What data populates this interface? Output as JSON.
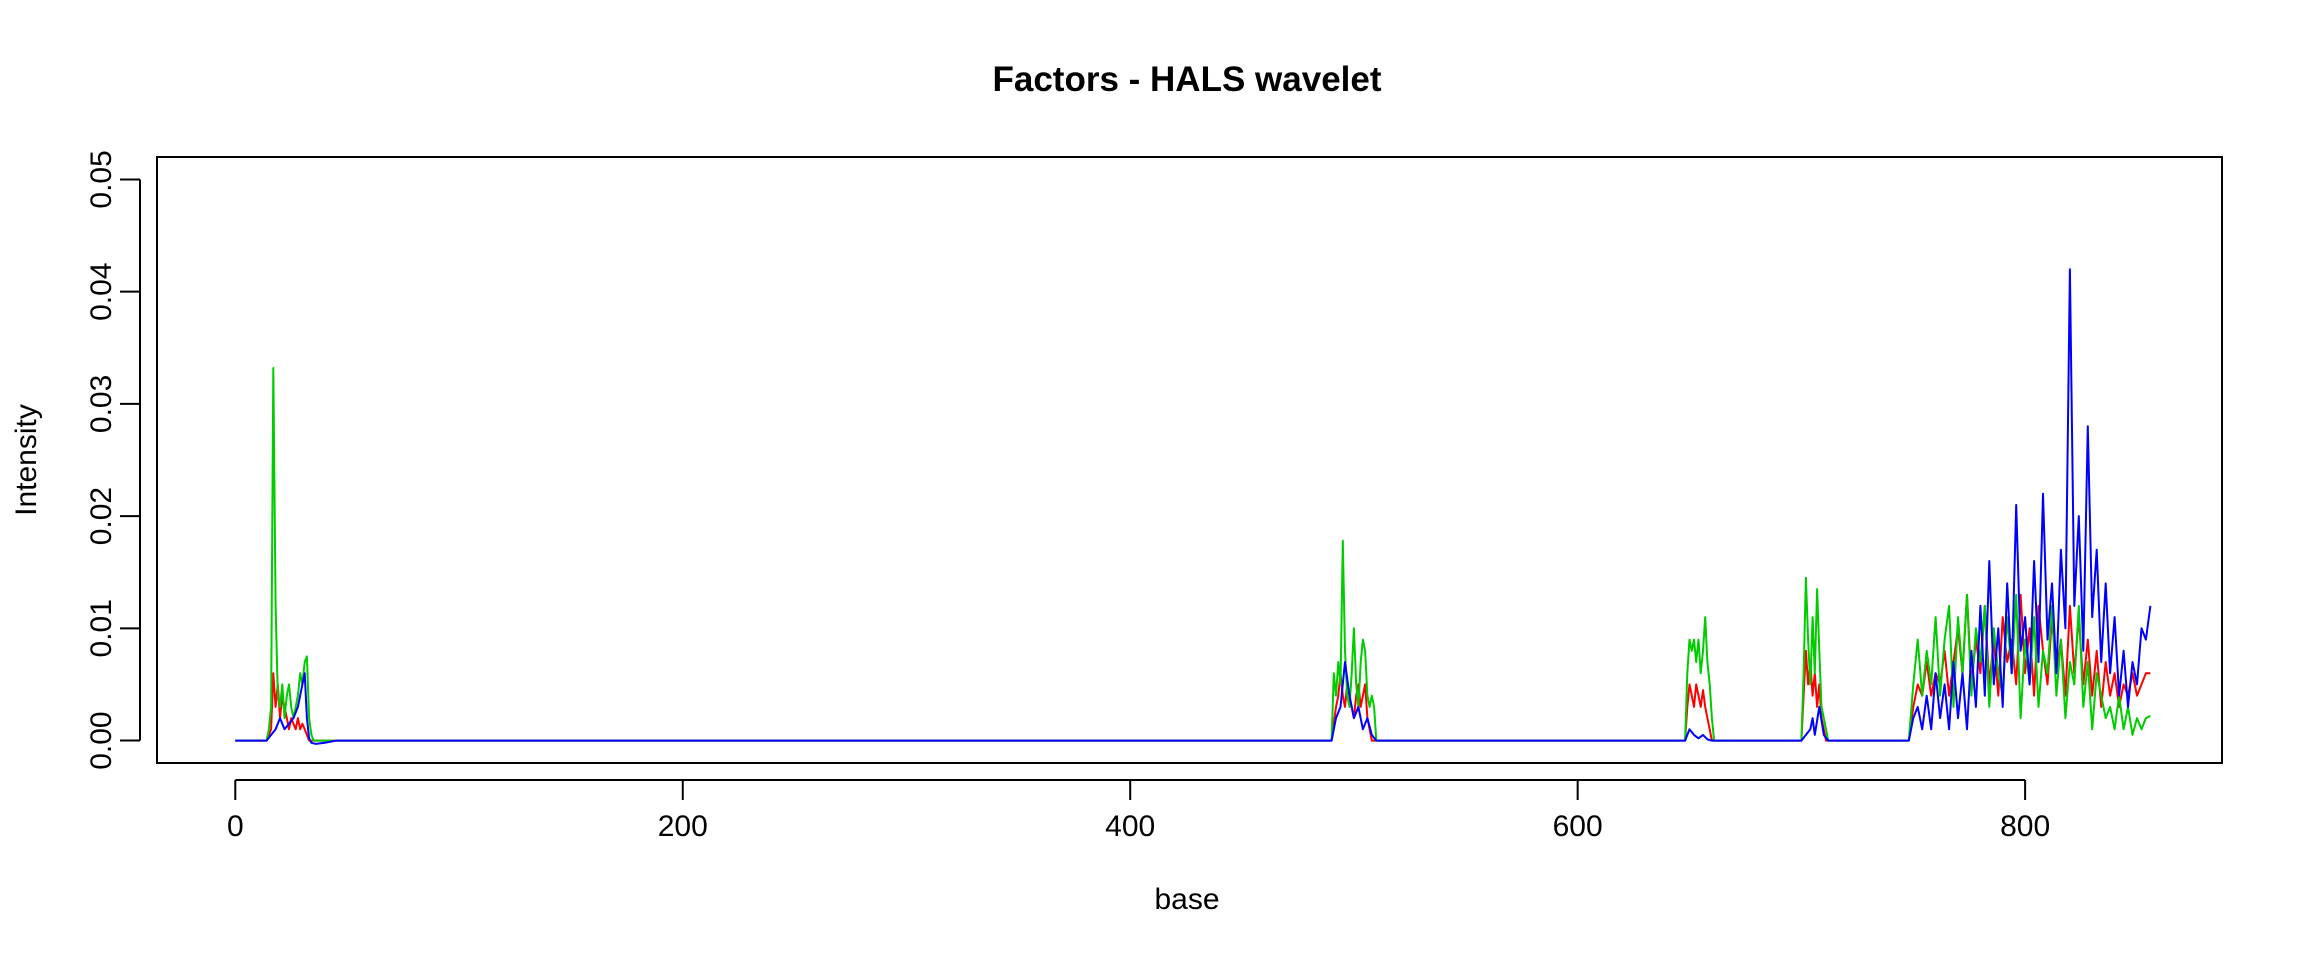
{
  "chart_data": {
    "type": "line",
    "title": "Factors - HALS wavelet",
    "xlabel": "base",
    "ylabel": "Intensity",
    "xlim": [
      -35,
      888
    ],
    "ylim": [
      -0.002,
      0.052
    ],
    "xticks": [
      0,
      200,
      400,
      600,
      800
    ],
    "xtick_labels": [
      "0",
      "200",
      "400",
      "600",
      "800"
    ],
    "yticks": [
      0.0,
      0.01,
      0.02,
      0.03,
      0.04,
      0.05
    ],
    "ytick_labels": [
      "0.00",
      "0.01",
      "0.02",
      "0.03",
      "0.04",
      "0.05"
    ],
    "grid": false,
    "legend": "none",
    "series": [
      {
        "color": "#ff0000",
        "x": [
          0,
          14,
          16,
          17,
          18,
          19,
          20,
          21,
          22,
          23,
          24,
          25,
          26,
          27,
          28,
          29,
          30,
          31,
          32,
          33,
          34,
          36,
          40,
          45,
          490,
          492,
          493,
          494,
          495,
          496,
          497,
          498,
          499,
          500,
          501,
          502,
          503,
          504,
          505,
          506,
          508,
          510,
          648,
          649,
          650,
          651,
          652,
          653,
          654,
          655,
          656,
          657,
          658,
          659,
          660,
          700,
          701,
          702,
          703,
          704,
          705,
          706,
          707,
          708,
          709,
          710,
          711,
          712,
          748,
          750,
          752,
          754,
          756,
          758,
          760,
          762,
          764,
          766,
          768,
          770,
          772,
          774,
          776,
          778,
          780,
          782,
          784,
          786,
          788,
          790,
          792,
          794,
          796,
          798,
          800,
          802,
          804,
          806,
          808,
          810,
          812,
          814,
          816,
          818,
          820,
          822,
          824,
          826,
          828,
          830,
          832,
          834,
          836,
          838,
          840,
          842,
          844,
          846,
          848,
          850,
          852,
          854,
          856
        ],
        "y": [
          0.0,
          0.0,
          0.001,
          0.006,
          0.003,
          0.005,
          0.002,
          0.004,
          0.003,
          0.002,
          0.001,
          0.002,
          0.0015,
          0.001,
          0.002,
          0.001,
          0.0015,
          0.001,
          0.0005,
          0.0,
          0.0,
          0.0,
          0.0,
          0.0,
          0.0,
          0.003,
          0.004,
          0.006,
          0.004,
          0.003,
          0.005,
          0.004,
          0.003,
          0.002,
          0.004,
          0.005,
          0.003,
          0.004,
          0.005,
          0.002,
          0.0,
          0.0,
          0.0,
          0.003,
          0.005,
          0.004,
          0.003,
          0.005,
          0.004,
          0.003,
          0.0045,
          0.003,
          0.002,
          0.001,
          0.0,
          0.0,
          0.004,
          0.008,
          0.005,
          0.007,
          0.004,
          0.006,
          0.003,
          0.005,
          0.002,
          0.001,
          0.0,
          0.0,
          0.0,
          0.003,
          0.005,
          0.004,
          0.007,
          0.004,
          0.006,
          0.005,
          0.008,
          0.004,
          0.007,
          0.01,
          0.006,
          0.013,
          0.005,
          0.009,
          0.006,
          0.012,
          0.005,
          0.009,
          0.004,
          0.011,
          0.007,
          0.009,
          0.005,
          0.013,
          0.006,
          0.01,
          0.004,
          0.012,
          0.008,
          0.005,
          0.011,
          0.006,
          0.009,
          0.004,
          0.012,
          0.006,
          0.011,
          0.005,
          0.009,
          0.004,
          0.008,
          0.003,
          0.007,
          0.004,
          0.006,
          0.003,
          0.005,
          0.004,
          0.006,
          0.004,
          0.005,
          0.006,
          0.006
        ]
      },
      {
        "color": "#00cc00",
        "x": [
          0,
          14,
          15,
          16,
          17,
          18,
          19,
          20,
          21,
          22,
          23,
          24,
          25,
          26,
          27,
          28,
          29,
          30,
          31,
          32,
          33,
          34,
          35,
          40,
          45,
          490,
          491,
          492,
          493,
          494,
          495,
          496,
          497,
          498,
          499,
          500,
          501,
          502,
          503,
          504,
          505,
          506,
          507,
          508,
          509,
          510,
          648,
          649,
          650,
          651,
          652,
          653,
          654,
          655,
          656,
          657,
          658,
          659,
          660,
          661,
          662,
          700,
          701,
          702,
          703,
          704,
          705,
          706,
          707,
          708,
          709,
          710,
          711,
          712,
          748,
          750,
          752,
          754,
          756,
          758,
          760,
          762,
          764,
          766,
          768,
          770,
          772,
          774,
          776,
          778,
          780,
          782,
          784,
          786,
          788,
          790,
          792,
          794,
          796,
          798,
          800,
          802,
          804,
          806,
          808,
          810,
          812,
          814,
          816,
          818,
          820,
          822,
          824,
          826,
          828,
          830,
          832,
          834,
          836,
          838,
          840,
          842,
          844,
          846,
          848,
          850,
          852,
          854,
          856
        ],
        "y": [
          0.0,
          0.0,
          0.001,
          0.003,
          0.0332,
          0.012,
          0.004,
          0.003,
          0.005,
          0.002,
          0.004,
          0.005,
          0.003,
          0.002,
          0.003,
          0.004,
          0.006,
          0.005,
          0.007,
          0.0075,
          0.002,
          0.0005,
          0.0,
          0.0,
          0.0,
          0.0,
          0.006,
          0.004,
          0.007,
          0.005,
          0.0178,
          0.008,
          0.004,
          0.003,
          0.006,
          0.01,
          0.005,
          0.003,
          0.007,
          0.009,
          0.008,
          0.004,
          0.003,
          0.004,
          0.003,
          0.0,
          0.0,
          0.006,
          0.009,
          0.008,
          0.009,
          0.007,
          0.009,
          0.006,
          0.008,
          0.011,
          0.007,
          0.005,
          0.002,
          0.0,
          0.0,
          0.0,
          0.006,
          0.0145,
          0.009,
          0.005,
          0.011,
          0.006,
          0.0135,
          0.008,
          0.003,
          0.002,
          0.001,
          0.0,
          0.0,
          0.005,
          0.009,
          0.004,
          0.008,
          0.005,
          0.011,
          0.004,
          0.009,
          0.012,
          0.003,
          0.011,
          0.006,
          0.013,
          0.004,
          0.01,
          0.007,
          0.012,
          0.003,
          0.01,
          0.006,
          0.004,
          0.011,
          0.006,
          0.013,
          0.002,
          0.009,
          0.005,
          0.011,
          0.003,
          0.008,
          0.006,
          0.012,
          0.004,
          0.009,
          0.002,
          0.007,
          0.005,
          0.012,
          0.003,
          0.007,
          0.001,
          0.006,
          0.004,
          0.002,
          0.003,
          0.001,
          0.004,
          0.001,
          0.003,
          0.0005,
          0.002,
          0.001,
          0.002,
          0.0022
        ]
      },
      {
        "color": "#0000ff",
        "x": [
          0,
          14,
          16,
          18,
          20,
          22,
          24,
          26,
          28,
          30,
          31,
          32,
          33,
          34,
          36,
          40,
          45,
          490,
          492,
          494,
          496,
          498,
          500,
          502,
          504,
          506,
          508,
          510,
          648,
          650,
          652,
          654,
          656,
          658,
          660,
          700,
          702,
          704,
          705,
          706,
          708,
          710,
          712,
          748,
          750,
          752,
          754,
          756,
          758,
          760,
          762,
          764,
          766,
          768,
          770,
          772,
          774,
          776,
          778,
          780,
          782,
          784,
          786,
          788,
          790,
          792,
          794,
          796,
          798,
          800,
          802,
          804,
          806,
          808,
          810,
          812,
          814,
          816,
          818,
          820,
          822,
          824,
          826,
          828,
          830,
          832,
          834,
          836,
          838,
          840,
          842,
          844,
          846,
          848,
          850,
          852,
          854,
          856
        ],
        "y": [
          0.0,
          0.0,
          0.0005,
          0.001,
          0.002,
          0.001,
          0.0015,
          0.002,
          0.003,
          0.005,
          0.006,
          0.002,
          0.0002,
          -0.0002,
          -0.0003,
          -0.0002,
          0.0,
          0.0,
          0.002,
          0.003,
          0.007,
          0.004,
          0.002,
          0.003,
          0.001,
          0.002,
          0.0005,
          0.0,
          0.0,
          0.001,
          0.0005,
          0.0002,
          0.0005,
          0.0001,
          0.0,
          0.0,
          0.0005,
          0.001,
          0.002,
          0.0005,
          0.003,
          0.0005,
          0.0,
          0.0,
          0.002,
          0.003,
          0.001,
          0.004,
          0.001,
          0.006,
          0.002,
          0.005,
          0.001,
          0.007,
          0.002,
          0.006,
          0.001,
          0.008,
          0.003,
          0.012,
          0.004,
          0.016,
          0.005,
          0.01,
          0.003,
          0.014,
          0.006,
          0.021,
          0.008,
          0.011,
          0.005,
          0.016,
          0.007,
          0.022,
          0.009,
          0.014,
          0.006,
          0.017,
          0.01,
          0.042,
          0.012,
          0.02,
          0.008,
          0.028,
          0.011,
          0.017,
          0.007,
          0.014,
          0.006,
          0.011,
          0.004,
          0.008,
          0.003,
          0.007,
          0.005,
          0.01,
          0.009,
          0.012
        ]
      }
    ]
  }
}
